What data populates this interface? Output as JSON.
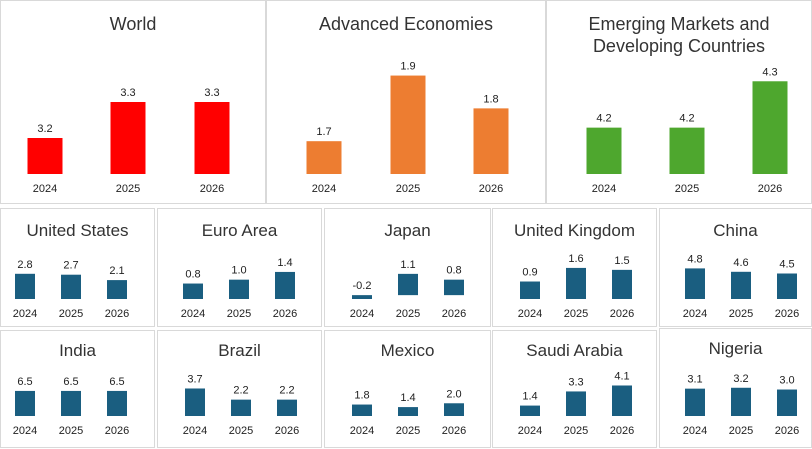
{
  "chart_data": [
    {
      "type": "bar",
      "title": "World",
      "categories": [
        "2024",
        "2025",
        "2026"
      ],
      "values": [
        3.2,
        3.3,
        3.3
      ],
      "labels": [
        "3.2",
        "3.3",
        "3.3"
      ],
      "color": "#ff0000",
      "ylim": [
        3.1,
        3.35
      ]
    },
    {
      "type": "bar",
      "title": "Advanced Economies",
      "categories": [
        "2024",
        "2025",
        "2026"
      ],
      "values": [
        1.7,
        1.9,
        1.8
      ],
      "labels": [
        "1.7",
        "1.9",
        "1.8"
      ],
      "color": "#ed7d31",
      "ylim": [
        1.6,
        1.92
      ]
    },
    {
      "type": "bar",
      "title": "Emerging Markets and Developing Countries",
      "categories": [
        "2024",
        "2025",
        "2026"
      ],
      "values": [
        4.2,
        4.2,
        4.3
      ],
      "labels": [
        "4.2",
        "4.2",
        "4.3"
      ],
      "color": "#4ea72e",
      "ylim": [
        4.1,
        4.32
      ]
    },
    {
      "type": "bar",
      "title": "United States",
      "categories": [
        "2024",
        "2025",
        "2026"
      ],
      "values": [
        2.8,
        2.7,
        2.1
      ],
      "labels": [
        "2.8",
        "2.7",
        "2.1"
      ],
      "color": "#1a5e80",
      "ylim": [
        0,
        3
      ]
    },
    {
      "type": "bar",
      "title": "Euro Area",
      "categories": [
        "2024",
        "2025",
        "2026"
      ],
      "values": [
        0.8,
        1.0,
        1.4
      ],
      "labels": [
        "0.8",
        "1.0",
        "1.4"
      ],
      "color": "#1a5e80",
      "ylim": [
        0,
        1.5
      ]
    },
    {
      "type": "bar",
      "title": "Japan",
      "categories": [
        "2024",
        "2025",
        "2026"
      ],
      "values": [
        -0.2,
        1.1,
        0.8
      ],
      "labels": [
        "-0.2",
        "1.1",
        "0.8"
      ],
      "color": "#1a5e80",
      "ylim": [
        -0.2,
        1.3
      ]
    },
    {
      "type": "bar",
      "title": "United Kingdom",
      "categories": [
        "2024",
        "2025",
        "2026"
      ],
      "values": [
        0.9,
        1.6,
        1.5
      ],
      "labels": [
        "0.9",
        "1.6",
        "1.5"
      ],
      "color": "#1a5e80",
      "ylim": [
        0,
        1.75
      ]
    },
    {
      "type": "bar",
      "title": "China",
      "categories": [
        "2024",
        "2025",
        "2026"
      ],
      "values": [
        4.8,
        4.6,
        4.5
      ],
      "labels": [
        "4.8",
        "4.6",
        "4.5"
      ],
      "color": "#1a5e80",
      "ylim": [
        3,
        5
      ]
    },
    {
      "type": "bar",
      "title": "India",
      "categories": [
        "2024",
        "2025",
        "2026"
      ],
      "values": [
        6.5,
        6.5,
        6.5
      ],
      "labels": [
        "6.5",
        "6.5",
        "6.5"
      ],
      "color": "#1a5e80",
      "ylim": [
        0,
        7
      ]
    },
    {
      "type": "bar",
      "title": "Brazil",
      "categories": [
        "2024",
        "2025",
        "2026"
      ],
      "values": [
        3.7,
        2.2,
        2.2
      ],
      "labels": [
        "3.7",
        "2.2",
        "2.2"
      ],
      "color": "#1a5e80",
      "ylim": [
        0,
        3.9
      ]
    },
    {
      "type": "bar",
      "title": "Mexico",
      "categories": [
        "2024",
        "2025",
        "2026"
      ],
      "values": [
        1.8,
        1.4,
        2.0
      ],
      "labels": [
        "1.8",
        "1.4",
        "2.0"
      ],
      "color": "#1a5e80",
      "ylim": [
        0,
        2.2
      ]
    },
    {
      "type": "bar",
      "title": "Saudi Arabia",
      "categories": [
        "2024",
        "2025",
        "2026"
      ],
      "values": [
        1.4,
        3.3,
        4.1
      ],
      "labels": [
        "1.4",
        "3.3",
        "4.1"
      ],
      "color": "#1a5e80",
      "ylim": [
        0,
        4.3
      ]
    },
    {
      "type": "bar",
      "title": "Nigeria",
      "categories": [
        "2024",
        "2025",
        "2026"
      ],
      "values": [
        3.1,
        3.2,
        3.0
      ],
      "labels": [
        "3.1",
        "3.2",
        "3.0"
      ],
      "color": "#1a5e80",
      "ylim": [
        0,
        3.4
      ]
    }
  ]
}
